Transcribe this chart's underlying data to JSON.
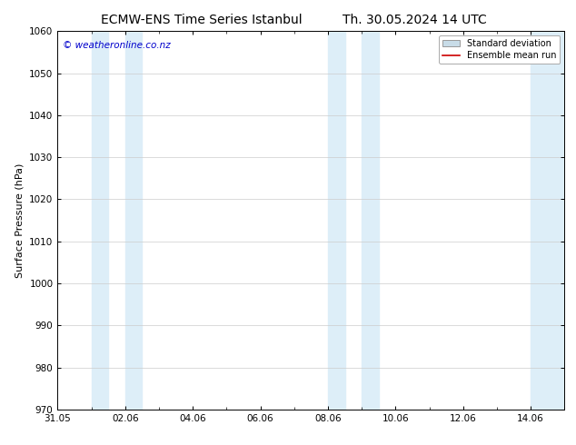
{
  "title_left": "ECMW-ENS Time Series Istanbul",
  "title_right": "Th. 30.05.2024 14 UTC",
  "ylabel": "Surface Pressure (hPa)",
  "ylim": [
    970,
    1060
  ],
  "yticks": [
    970,
    980,
    990,
    1000,
    1010,
    1020,
    1030,
    1040,
    1050,
    1060
  ],
  "xtick_labels": [
    "31.05",
    "02.06",
    "04.06",
    "06.06",
    "08.06",
    "10.06",
    "12.06",
    "14.06"
  ],
  "xtick_positions": [
    0,
    2,
    4,
    6,
    8,
    10,
    12,
    14
  ],
  "xlim": [
    0,
    15
  ],
  "shaded_bands": [
    {
      "x_start": 1.0,
      "x_end": 1.5,
      "color": "#ddeef8"
    },
    {
      "x_start": 2.0,
      "x_end": 2.5,
      "color": "#ddeef8"
    },
    {
      "x_start": 8.0,
      "x_end": 8.5,
      "color": "#ddeef8"
    },
    {
      "x_start": 9.0,
      "x_end": 9.5,
      "color": "#ddeef8"
    },
    {
      "x_start": 14.0,
      "x_end": 15.0,
      "color": "#ddeef8"
    }
  ],
  "std_dev_band_color": "#c8dce8",
  "ensemble_line_color": "#cc0000",
  "watermark_text": "© weatheronline.co.nz",
  "watermark_color": "#0000cc",
  "legend_std_label": "Standard deviation",
  "legend_ens_label": "Ensemble mean run",
  "background_color": "#ffffff",
  "title_fontsize": 10,
  "label_fontsize": 8,
  "tick_fontsize": 7.5
}
